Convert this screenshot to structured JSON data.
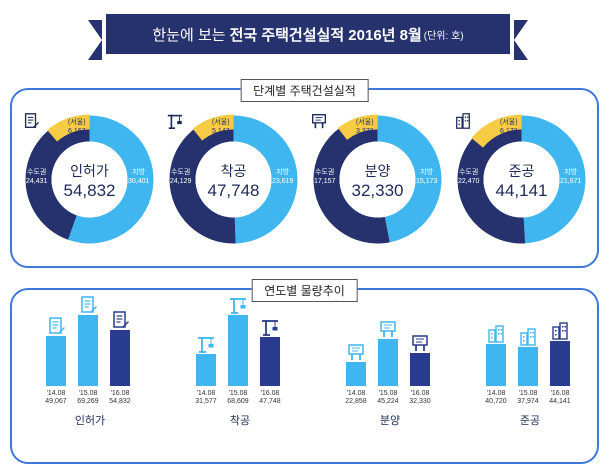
{
  "title": {
    "part1": "한눈에 보는",
    "part2": "전국 주택건설실적 2016년 8월",
    "unit": "(단위: 호)"
  },
  "sections": {
    "stages": "단계별 주택건설실적",
    "trend": "연도별 물량추이"
  },
  "colors": {
    "dark_blue": "#26326e",
    "light_blue": "#3fb6ef",
    "bar_dark": "#2a3c8f",
    "yellow": "#f6cc45",
    "border": "#3f78d8"
  },
  "chart_data": [
    {
      "type": "pie",
      "donut": true,
      "center_label": "인허가",
      "center_icon": "document-icon",
      "total": "54,832",
      "labels": [
        "수도권",
        "지방",
        "서울"
      ],
      "values": [
        "24,431",
        "30,401",
        "6,167"
      ],
      "numeric": [
        24431,
        30401,
        6167
      ]
    },
    {
      "type": "pie",
      "donut": true,
      "center_label": "착공",
      "center_icon": "crane-icon",
      "total": "47,748",
      "labels": [
        "수도권",
        "지방",
        "서울"
      ],
      "values": [
        "24,129",
        "23,619",
        "5,147"
      ],
      "numeric": [
        24129,
        23619,
        5147
      ]
    },
    {
      "type": "pie",
      "donut": true,
      "center_label": "분양",
      "center_icon": "signboard-icon",
      "total": "32,330",
      "labels": [
        "수도권",
        "지방",
        "서울"
      ],
      "values": [
        "17,157",
        "15,173",
        "3,372"
      ],
      "numeric": [
        17157,
        15173,
        3372
      ]
    },
    {
      "type": "pie",
      "donut": true,
      "center_label": "준공",
      "center_icon": "apartment-icon",
      "total": "44,141",
      "labels": [
        "수도권",
        "지방",
        "서울"
      ],
      "values": [
        "22,470",
        "21,671",
        "6,172"
      ],
      "numeric": [
        22470,
        21671,
        6172
      ]
    },
    {
      "type": "bar",
      "name": "인허가",
      "icon": "document-icon",
      "categories": [
        "'14.08",
        "'15.08",
        "'16.08"
      ],
      "value_labels": [
        "49,067",
        "69,269",
        "54,832"
      ],
      "values": [
        49067,
        69269,
        54832
      ]
    },
    {
      "type": "bar",
      "name": "착공",
      "icon": "crane-icon",
      "categories": [
        "'14.08",
        "'15.08",
        "'16.08"
      ],
      "value_labels": [
        "31,577",
        "68,609",
        "47,748"
      ],
      "values": [
        31577,
        68609,
        47748
      ]
    },
    {
      "type": "bar",
      "name": "분양",
      "icon": "signboard-icon",
      "categories": [
        "'14.08",
        "'15.08",
        "'16.08"
      ],
      "value_labels": [
        "22,858",
        "45,224",
        "32,330"
      ],
      "values": [
        22858,
        45224,
        32330
      ]
    },
    {
      "type": "bar",
      "name": "준공",
      "icon": "apartment-icon",
      "categories": [
        "'14.08",
        "'15.08",
        "'16.08"
      ],
      "value_labels": [
        "40,720",
        "37,974",
        "44,141"
      ],
      "values": [
        40720,
        37974,
        44141
      ]
    }
  ]
}
